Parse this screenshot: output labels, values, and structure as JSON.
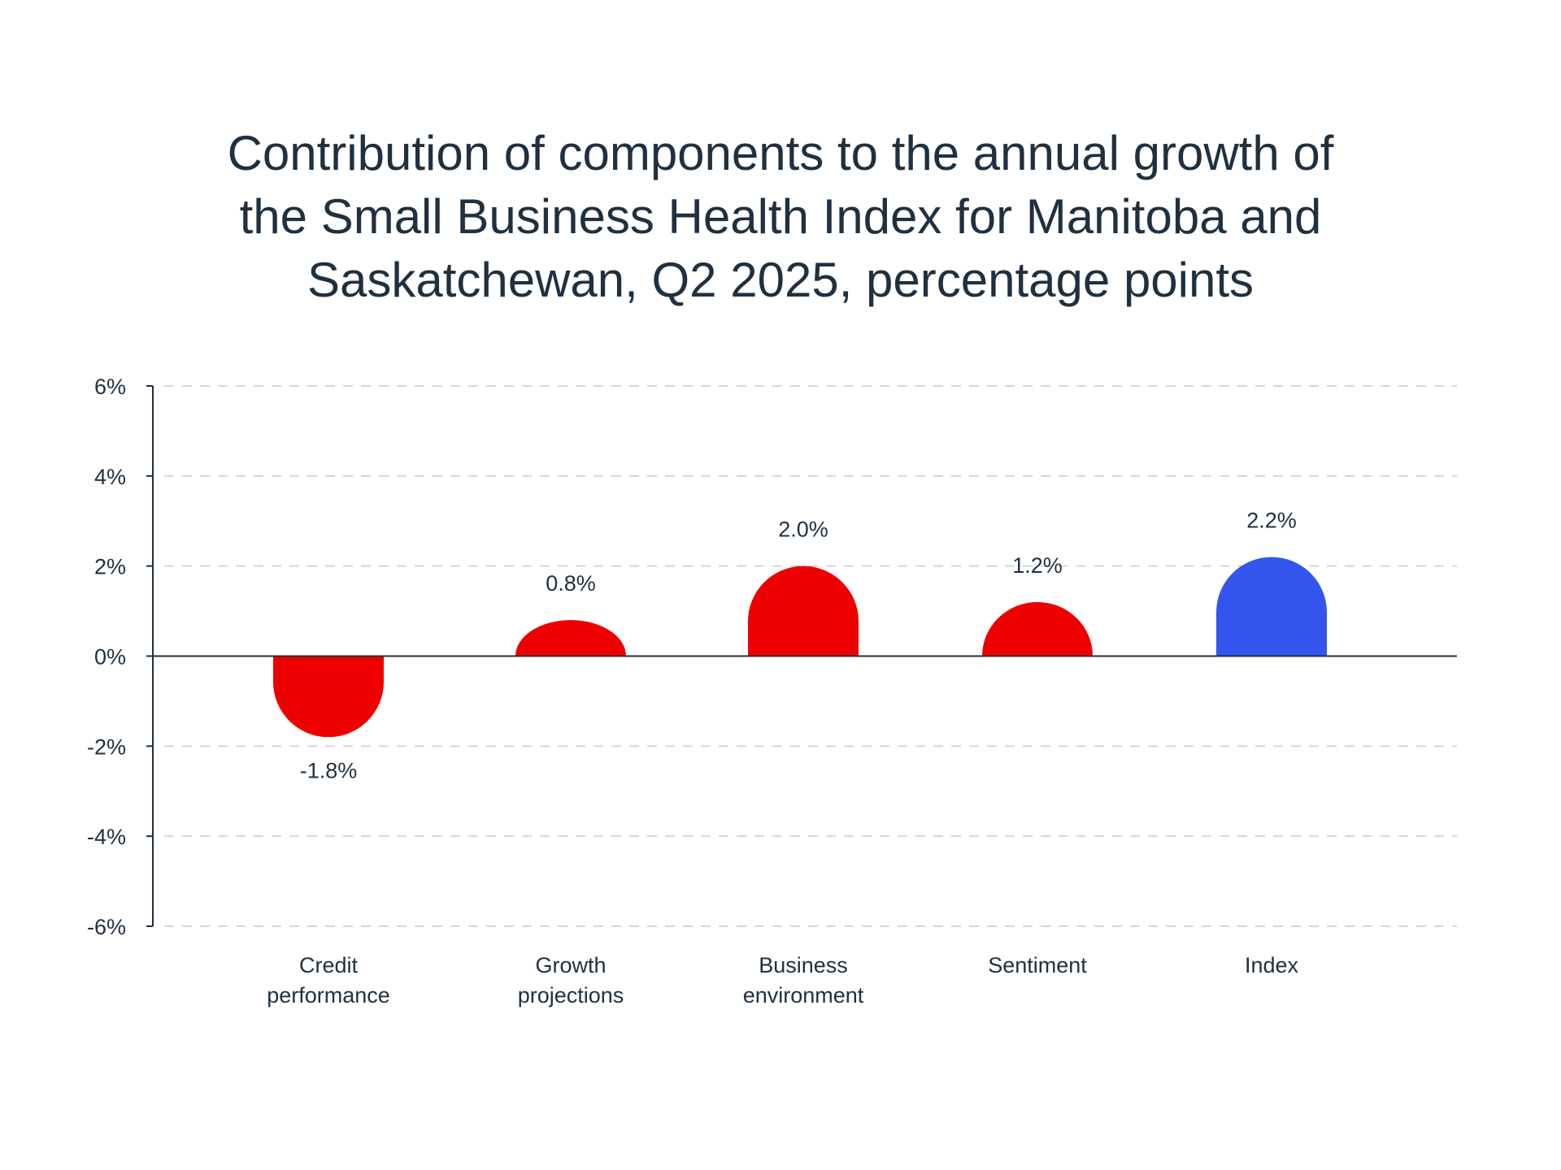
{
  "chart_data": {
    "type": "bar",
    "title_lines": [
      "Contribution of components to the annual growth of",
      "the Small Business Health Index for Manitoba and",
      "Saskatchewan, Q2 2025, percentage points"
    ],
    "categories": [
      [
        "Credit",
        "performance"
      ],
      [
        "Growth",
        "projections"
      ],
      [
        "Business",
        "environment"
      ],
      [
        "Sentiment"
      ],
      [
        "Index"
      ]
    ],
    "values": [
      -1.8,
      0.8,
      2.0,
      1.2,
      2.2
    ],
    "value_labels": [
      "-1.8%",
      "0.8%",
      "2.0%",
      "1.2%",
      "2.2%"
    ],
    "bar_colors": [
      "#ee0000",
      "#ee0000",
      "#ee0000",
      "#ee0000",
      "#3355ee"
    ],
    "y_ticks": [
      6,
      4,
      2,
      0,
      -2,
      -4,
      -6
    ],
    "y_tick_labels": [
      "6%",
      "4%",
      "2%",
      "0%",
      "-2%",
      "-4%",
      "-6%"
    ],
    "ylim": [
      -6,
      6
    ],
    "grid": true,
    "xlabel": "",
    "ylabel": ""
  },
  "colors": {
    "text": "#1f3040",
    "axis": "#1f3040",
    "grid": "#d9d6cc"
  }
}
